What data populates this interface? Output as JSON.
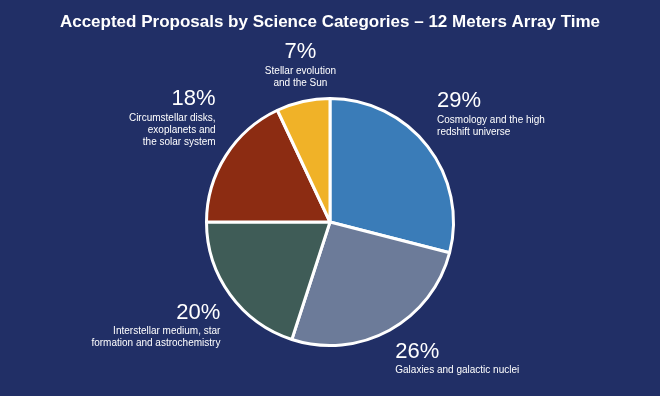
{
  "chart_data": {
    "type": "pie",
    "title": "Accepted Proposals by Science Categories – 12 Meters Array Time",
    "categories": [
      [
        "Cosmology and the high",
        "redshift universe"
      ],
      [
        "Galaxies and galactic nuclei"
      ],
      [
        "Interstellar medium, star",
        "formation and astrochemistry"
      ],
      [
        "Circumstellar disks,",
        "exoplanets and",
        "the solar system"
      ],
      [
        "Stellar evolution",
        "and the Sun"
      ]
    ],
    "values": [
      29,
      26,
      20,
      18,
      7
    ],
    "value_labels": [
      "29%",
      "26%",
      "20%",
      "18%",
      "7%"
    ],
    "colors": [
      "#3a7cb8",
      "#6c7b99",
      "#3f5c57",
      "#8c2c12",
      "#f0b228"
    ],
    "data_labels": true
  }
}
